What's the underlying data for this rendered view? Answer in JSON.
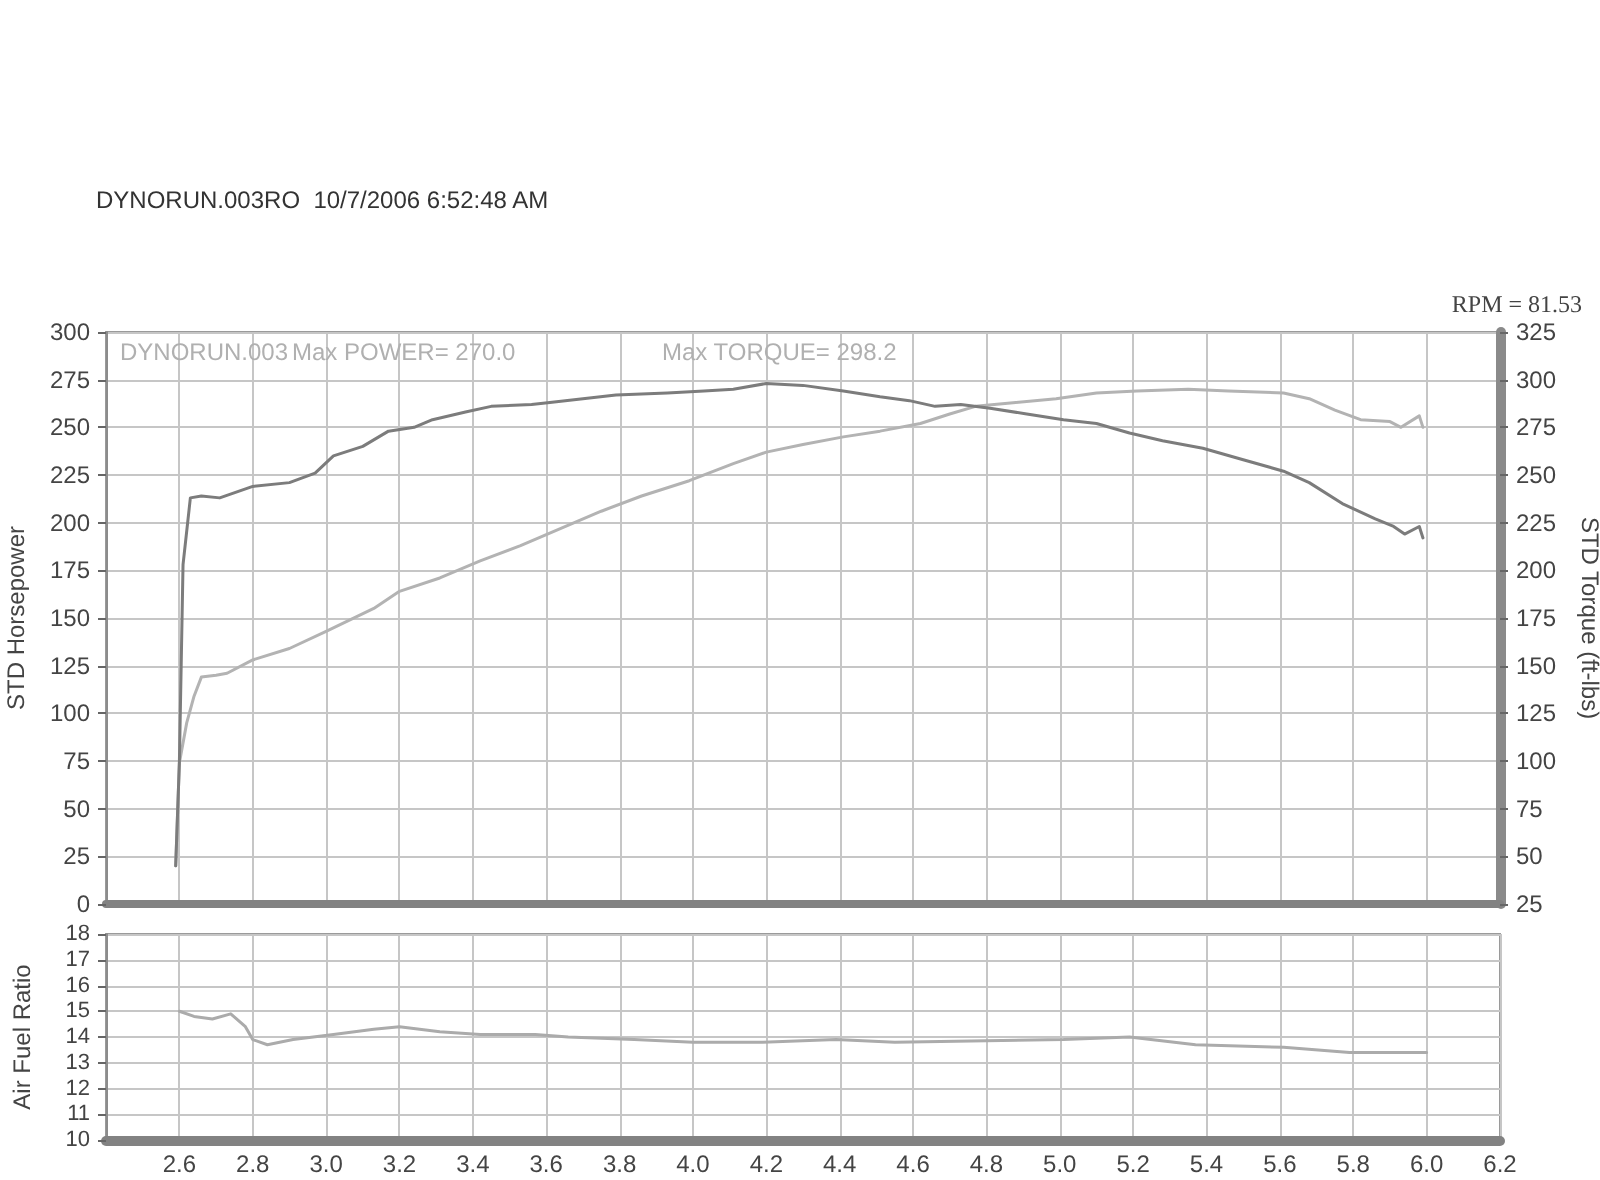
{
  "chart_data": [
    {
      "type": "line",
      "ylabel": "STD Horsepower",
      "y2label": "STD Torque (ft-lbs)",
      "annotations": [
        "DYNORUN.003RO  10/7/2006 6:52:48 AM",
        "DYNORUN.003",
        "Max POWER= 270.0",
        "Max TORQUE= 298.2",
        "RPM = 81.53"
      ],
      "xlim": [
        2.4,
        6.2
      ],
      "xticks": [
        2.6,
        2.8,
        3,
        3.2,
        3.4,
        3.6,
        3.8,
        4,
        4.2,
        4.4,
        4.6,
        4.8,
        5,
        5.2,
        5.4,
        5.6,
        5.8,
        6,
        6.2
      ],
      "ylim": [
        0,
        300
      ],
      "yticks": [
        0,
        25,
        50,
        75,
        100,
        125,
        150,
        175,
        200,
        225,
        250,
        275,
        300
      ],
      "y2lim": [
        25,
        325
      ],
      "y2ticks": [
        25,
        50,
        75,
        100,
        125,
        150,
        175,
        200,
        225,
        250,
        275,
        300,
        325
      ],
      "grid": true,
      "tick_labels": "y",
      "series": [
        {
          "color": "#b3b3b3",
          "x": [
            2.59,
            2.6,
            2.62,
            2.64,
            2.66,
            2.7,
            2.73,
            2.8,
            2.9,
            3.0,
            3.13,
            3.2,
            3.31,
            3.42,
            3.53,
            3.64,
            3.75,
            3.86,
            3.99,
            4.11,
            4.2,
            4.3,
            4.41,
            4.51,
            4.62,
            4.7,
            4.77,
            4.88,
            4.99,
            5.1,
            5.21,
            5.35,
            5.46,
            5.61,
            5.68,
            5.75,
            5.82,
            5.9,
            5.93,
            5.98,
            5.99
          ],
          "values": [
            20,
            74,
            95,
            109,
            119,
            120,
            121,
            128,
            134,
            143,
            155,
            164,
            171,
            180,
            188,
            197,
            206,
            214,
            222,
            231,
            237,
            241,
            245,
            248,
            252,
            257,
            261,
            263,
            265,
            268,
            269,
            270,
            269,
            268,
            265,
            259,
            254,
            253,
            250,
            256,
            250
          ]
        },
        {
          "color": "#7c7c7c",
          "axis": "y2",
          "x": [
            2.59,
            2.6,
            2.61,
            2.63,
            2.66,
            2.71,
            2.8,
            2.9,
            2.97,
            3.02,
            3.1,
            3.17,
            3.24,
            3.29,
            3.38,
            3.45,
            3.56,
            3.61,
            3.7,
            3.79,
            3.93,
            4.03,
            4.11,
            4.2,
            4.3,
            4.41,
            4.51,
            4.59,
            4.66,
            4.73,
            4.81,
            4.91,
            5.01,
            5.1,
            5.19,
            5.28,
            5.39,
            5.5,
            5.61,
            5.68,
            5.77,
            5.86,
            5.91,
            5.94,
            5.98,
            5.99
          ],
          "values": [
            45,
            99,
            203,
            238,
            239,
            238,
            244,
            246,
            251,
            260,
            265,
            273,
            275,
            279,
            283,
            286,
            287,
            288,
            290,
            292,
            293,
            294,
            295,
            298,
            297,
            294,
            291,
            289,
            286,
            287,
            285,
            282,
            279,
            277,
            272,
            268,
            264,
            258,
            252,
            246,
            235,
            227,
            223,
            219,
            223,
            217
          ]
        }
      ]
    },
    {
      "type": "line",
      "ylabel": "Air Fuel Ratio",
      "xlim": [
        2.4,
        6.2
      ],
      "xticks": [
        2.6,
        2.8,
        {
          "value": 3,
          "label": "3.0"
        },
        3.2,
        3.4,
        3.6,
        3.8,
        {
          "value": 4,
          "label": "4.0"
        },
        4.2,
        4.4,
        4.6,
        4.8,
        {
          "value": 5,
          "label": "5.0"
        },
        5.2,
        5.4,
        5.6,
        5.8,
        {
          "value": 6,
          "label": "6.0"
        },
        6.2
      ],
      "ylim": [
        10,
        18
      ],
      "yticks": [
        10,
        11,
        12,
        13,
        14,
        15,
        16,
        17,
        18
      ],
      "grid": true,
      "color": "#ababab",
      "x": [
        2.6,
        2.64,
        2.69,
        2.74,
        2.78,
        2.8,
        2.84,
        2.91,
        3.02,
        3.13,
        3.2,
        3.31,
        3.42,
        3.57,
        3.66,
        3.84,
        4.0,
        4.19,
        4.39,
        4.55,
        4.8,
        5.01,
        5.19,
        5.37,
        5.61,
        5.79,
        6.0
      ],
      "values": [
        15.0,
        14.8,
        14.7,
        14.9,
        14.4,
        13.9,
        13.7,
        13.9,
        14.1,
        14.3,
        14.4,
        14.2,
        14.1,
        14.1,
        14.0,
        13.9,
        13.8,
        13.8,
        13.9,
        13.8,
        13.85,
        13.9,
        14.0,
        13.7,
        13.6,
        13.4,
        13.4
      ]
    }
  ]
}
